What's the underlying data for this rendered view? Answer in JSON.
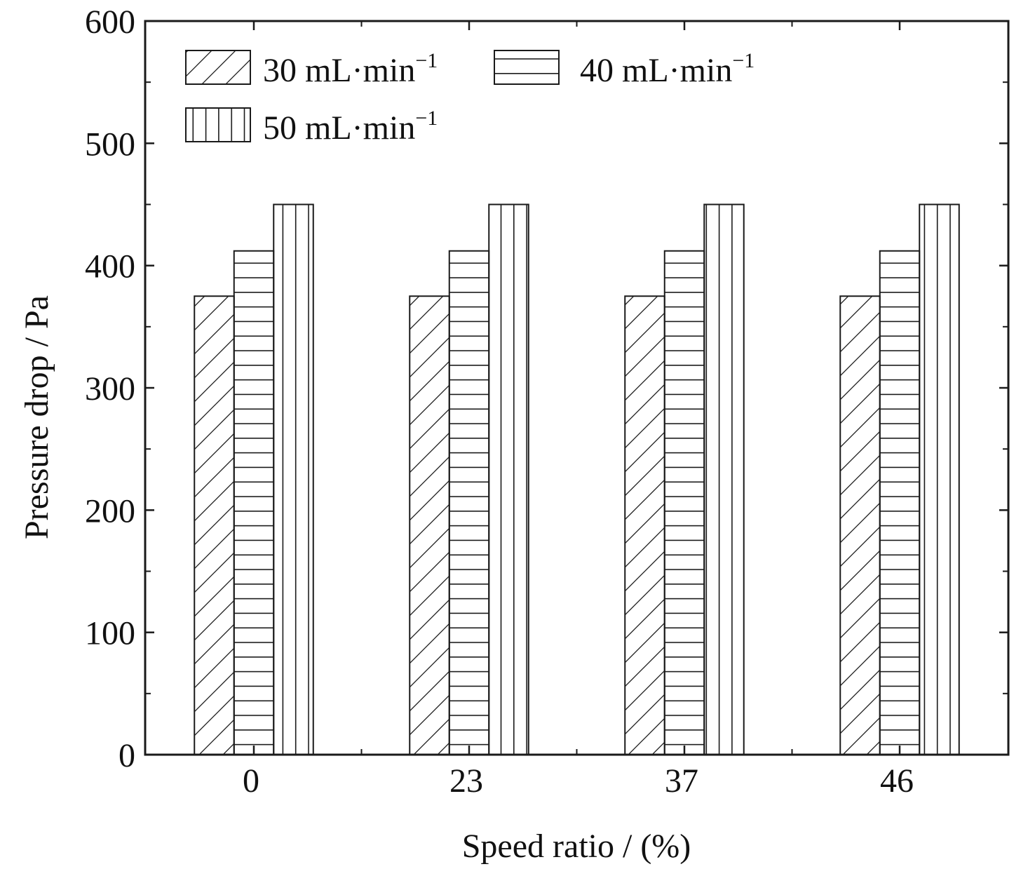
{
  "chart_data": {
    "type": "bar",
    "xlabel": "Speed ratio / (%)",
    "ylabel": "Pressure drop / Pa",
    "categories": [
      "0",
      "23",
      "37",
      "46"
    ],
    "ylim": [
      0,
      600
    ],
    "yticks": [
      0,
      100,
      200,
      300,
      400,
      500,
      600
    ],
    "grid": false,
    "legend_position": "top-left",
    "series": [
      {
        "name": "30 mL·min",
        "name_sup": "−1",
        "pattern": "diagonal-hatch",
        "values": [
          375,
          375,
          375,
          375
        ]
      },
      {
        "name": "40 mL·min",
        "name_sup": "−1",
        "pattern": "horizontal-hatch",
        "values": [
          412,
          412,
          412,
          412
        ]
      },
      {
        "name": "50 mL·min",
        "name_sup": "−1",
        "pattern": "vertical-hatch",
        "values": [
          450,
          450,
          450,
          450
        ]
      }
    ],
    "colors": {
      "stroke": "#1a1a1a",
      "fill": "#ffffff"
    }
  }
}
